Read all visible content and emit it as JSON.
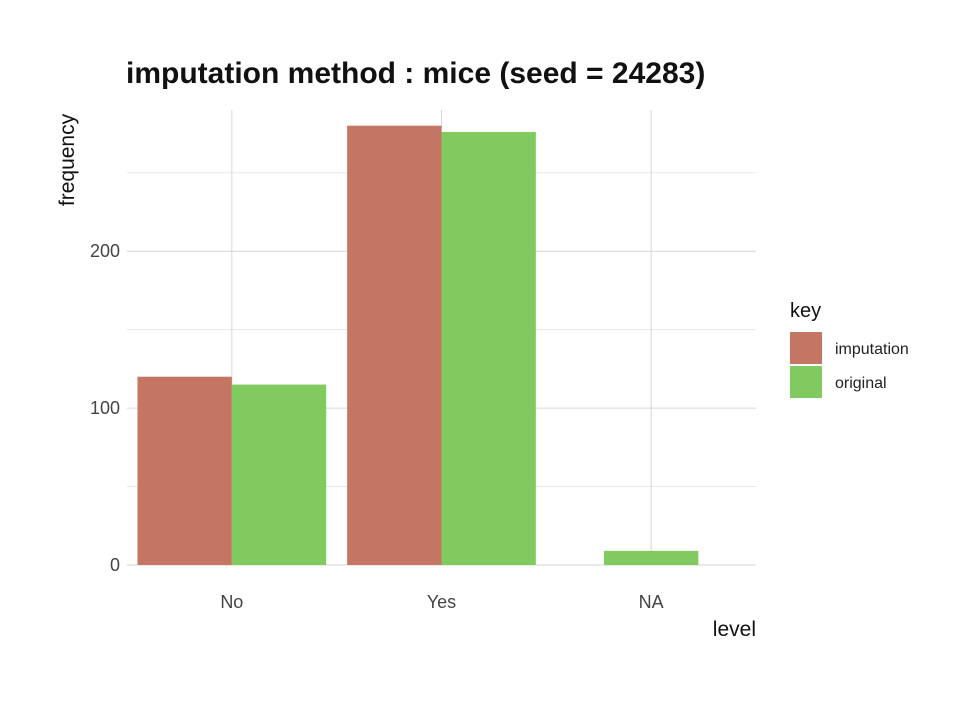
{
  "chart_data": {
    "type": "bar",
    "title": "imputation method : mice (seed = 24283)",
    "xlabel": "level",
    "ylabel": "frequency",
    "categories": [
      "No",
      "Yes",
      "NA"
    ],
    "series": [
      {
        "name": "imputation",
        "color": "#c47563",
        "values": [
          120,
          280,
          null
        ]
      },
      {
        "name": "original",
        "color": "#80ca60",
        "values": [
          115,
          276,
          9
        ]
      }
    ],
    "yticks": [
      0,
      100,
      200
    ],
    "ylim": [
      0,
      290
    ],
    "grid": true,
    "legend": {
      "title": "key",
      "position": "right"
    }
  }
}
